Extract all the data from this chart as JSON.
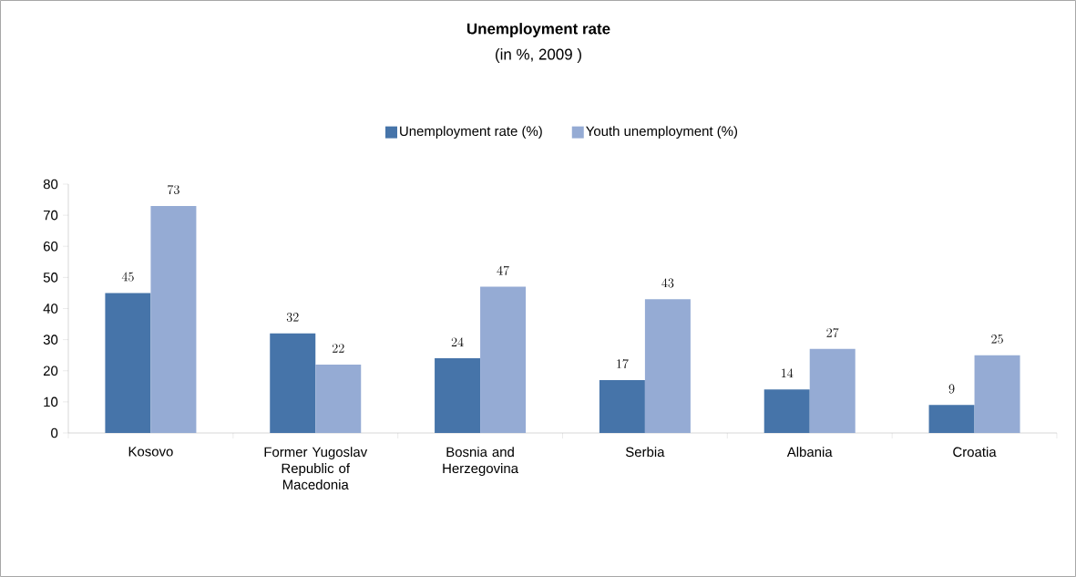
{
  "chart_data": {
    "type": "bar",
    "title": "Unemployment rate",
    "subtitle": "(in %, 2009 )",
    "categories": [
      "Kosovo",
      "Former Yugoslav Republic of Macedonia",
      "Bosnia and Herzegovina",
      "Serbia",
      "Albania",
      "Croatia"
    ],
    "series": [
      {
        "name": "Unemployment rate (%)",
        "color": "#4674a9",
        "values": [
          45,
          32,
          24,
          17,
          14,
          9
        ]
      },
      {
        "name": "Youth unemployment (%)",
        "color": "#95abd4",
        "values": [
          73,
          22,
          47,
          43,
          27,
          25
        ]
      }
    ],
    "ylim": [
      0,
      80
    ],
    "yticks": [
      0,
      10,
      20,
      30,
      40,
      50,
      60,
      70,
      80
    ],
    "data_labels": true,
    "legend": "top",
    "grid": false
  }
}
